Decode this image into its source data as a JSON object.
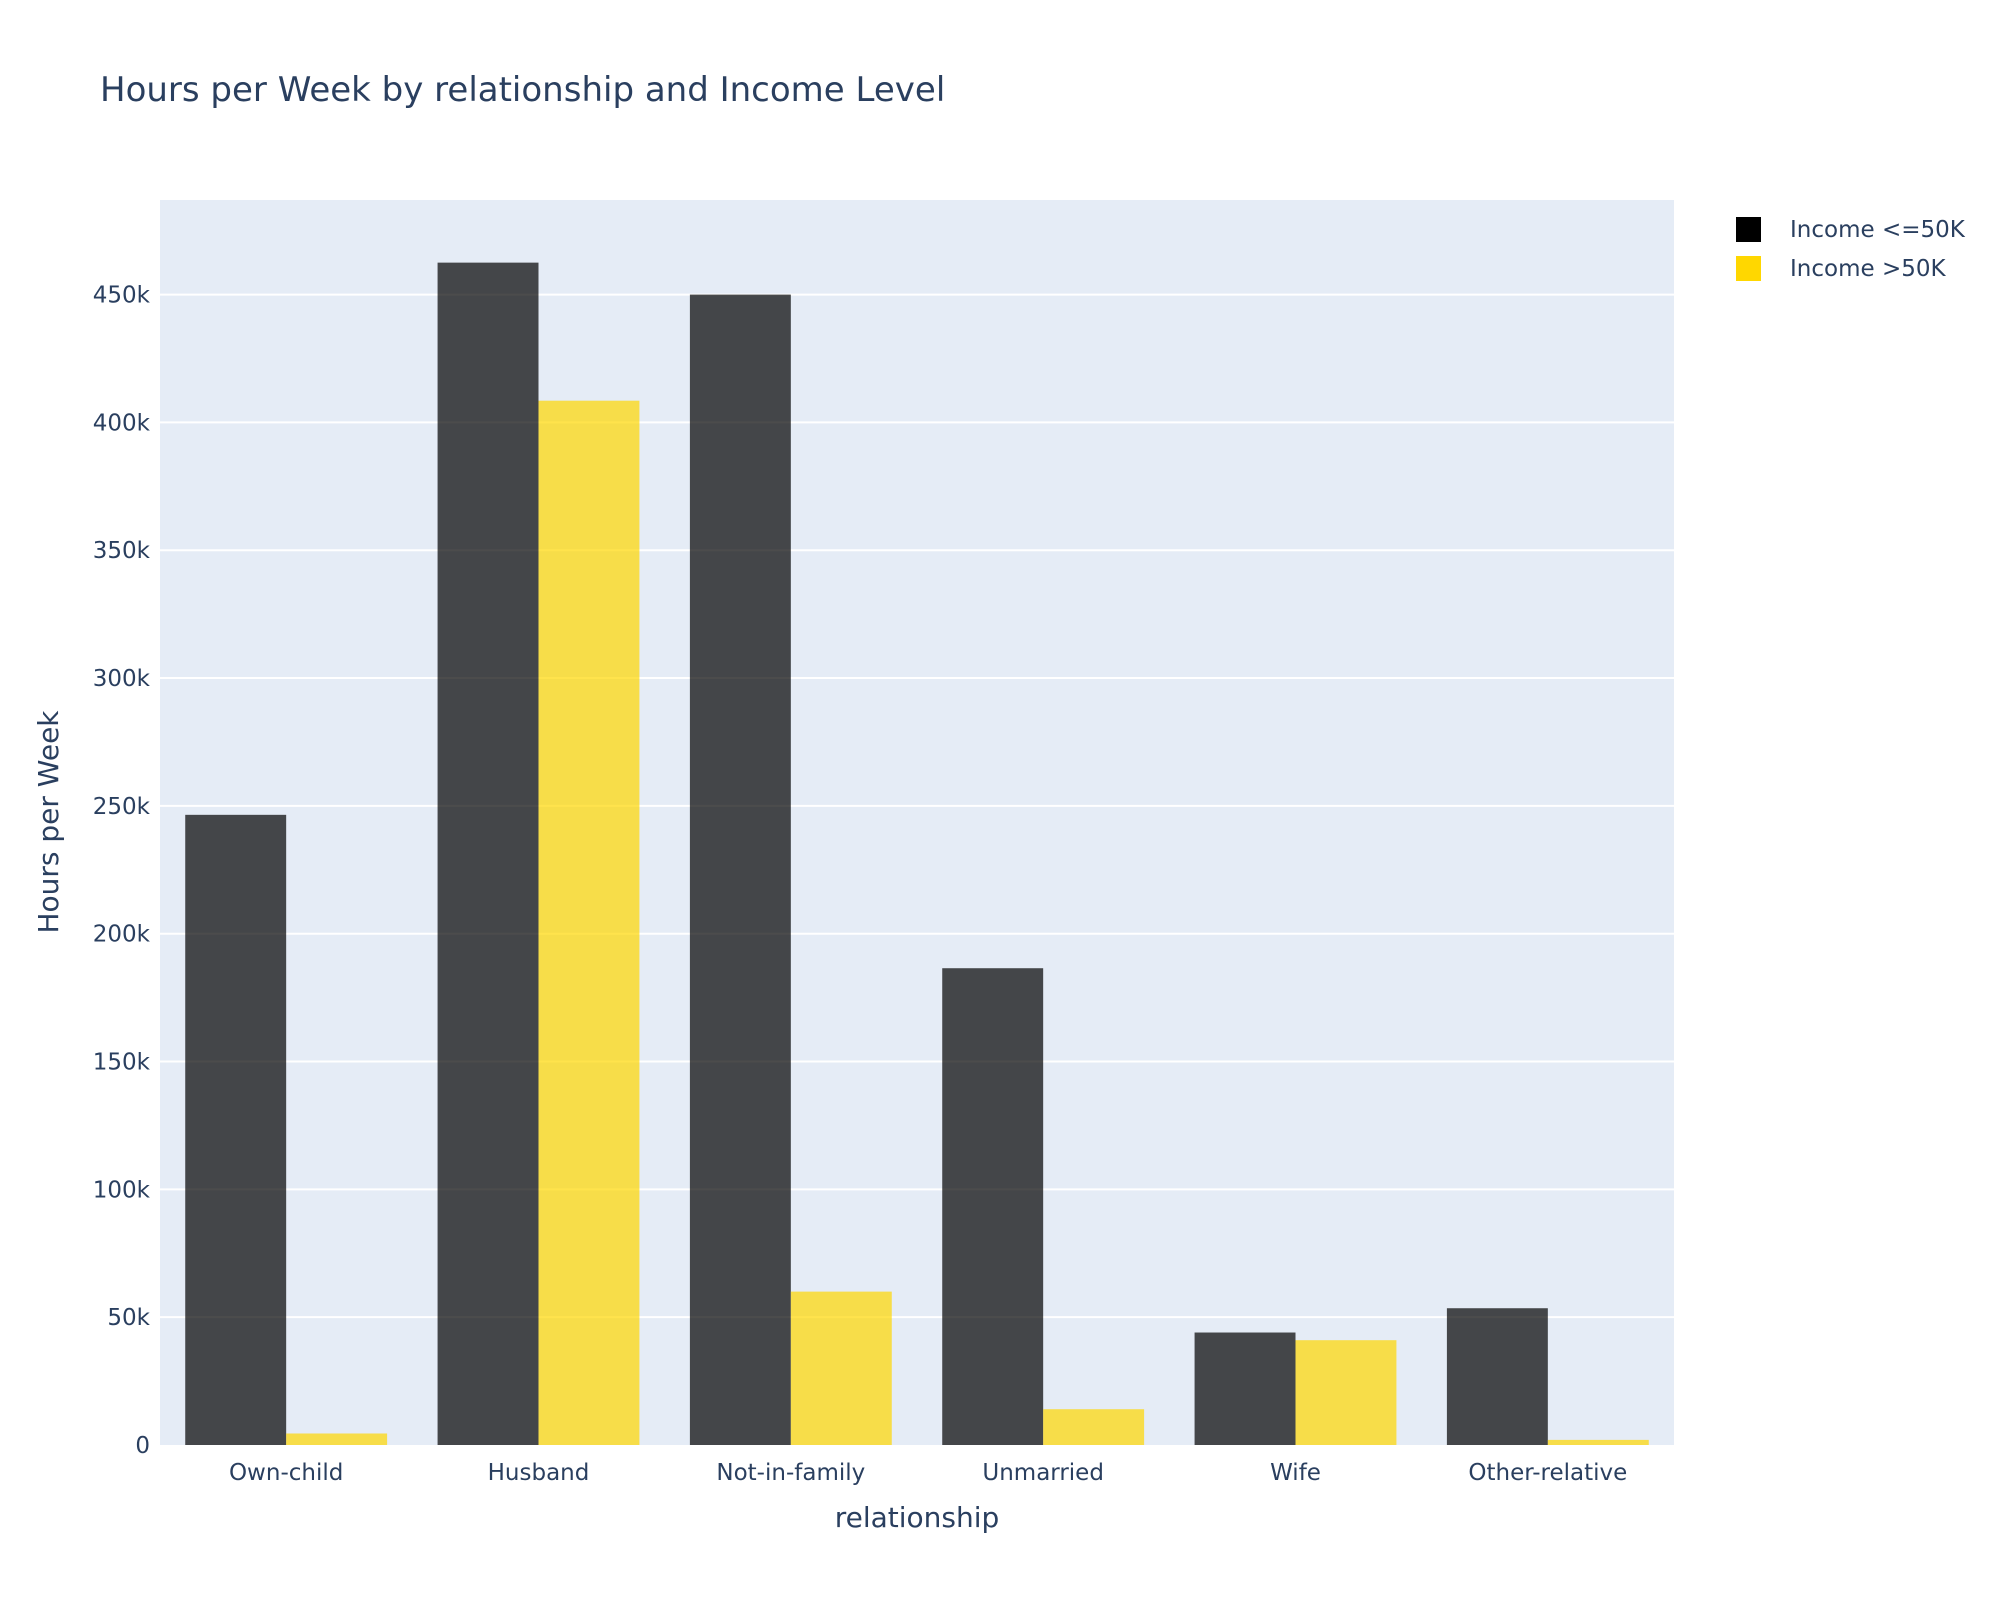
{
  "chart_data": {
    "type": "bar",
    "title": "Hours per Week by relationship and Income Level",
    "xlabel": "relationship",
    "ylabel": "Hours per Week",
    "categories": [
      "Own-child",
      "Husband",
      "Not-in-family",
      "Unmarried",
      "Wife",
      "Other-relative"
    ],
    "series": [
      {
        "name": "Income <=50K",
        "color": "#000000",
        "values": [
          246500,
          462500,
          450000,
          186500,
          44000,
          53500
        ]
      },
      {
        "name": "Income >50K",
        "color": "#FFD700",
        "values": [
          4500,
          408500,
          60000,
          14000,
          41000,
          2000
        ]
      }
    ],
    "ylim": [
      0,
      487000
    ],
    "yticks": [
      0,
      50000,
      100000,
      150000,
      200000,
      250000,
      300000,
      350000,
      400000,
      450000
    ],
    "ytick_labels": [
      "0",
      "50k",
      "100k",
      "150k",
      "200k",
      "250k",
      "300k",
      "350k",
      "400k",
      "450k"
    ],
    "bar_opacity": 0.7,
    "grid": true,
    "legend_position": "top-right",
    "plot_background": "#E5ECF6"
  }
}
